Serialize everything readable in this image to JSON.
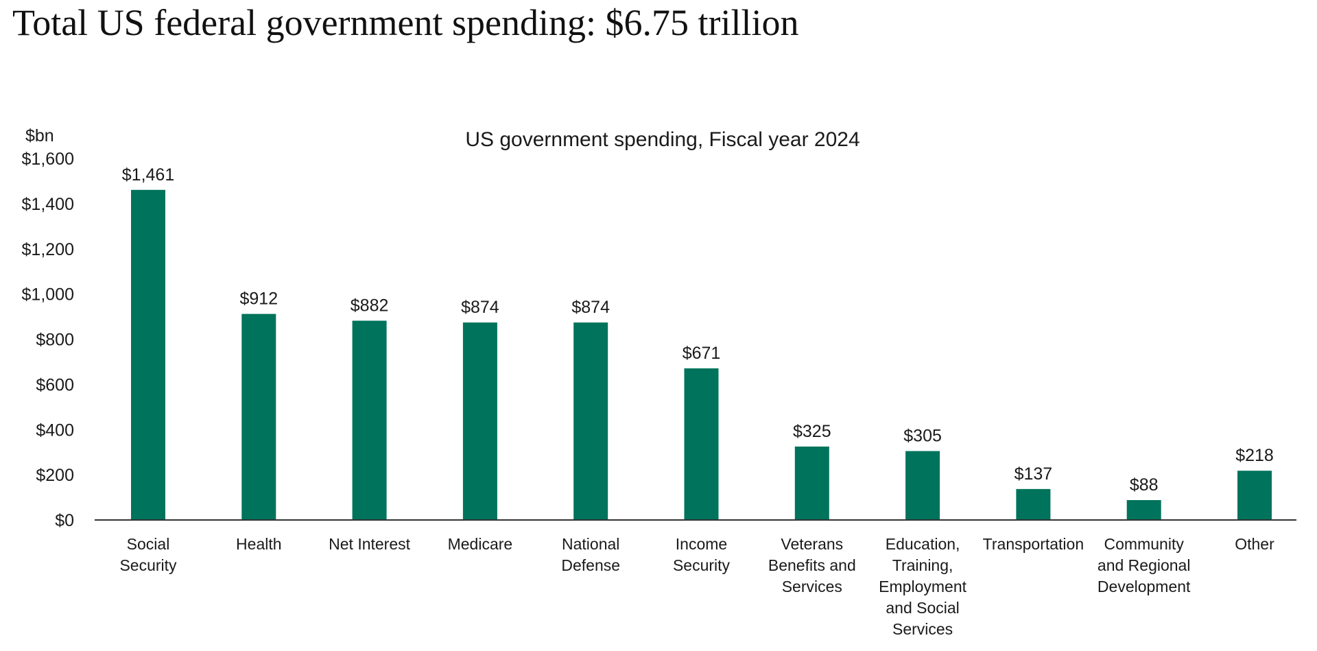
{
  "page": {
    "title": "Total US federal government spending: $6.75 trillion"
  },
  "chart_data": {
    "type": "bar",
    "title": "US government spending, Fiscal year 2024",
    "ylabel": "$bn",
    "xlabel": "",
    "ylim": [
      0,
      1600
    ],
    "yticks": [
      0,
      200,
      400,
      600,
      800,
      1000,
      1200,
      1400,
      1600
    ],
    "ytick_labels": [
      "$0",
      "$200",
      "$400",
      "$600",
      "$800",
      "$1,000",
      "$1,200",
      "$1,400",
      "$1,600"
    ],
    "categories": [
      "Social Security",
      "Health",
      "Net Interest",
      "Medicare",
      "National Defense",
      "Income Security",
      "Veterans Benefits and Services",
      "Education, Training, Employment and Social Services",
      "Transportation",
      "Community and Regional Development",
      "Other"
    ],
    "category_lines": [
      [
        "Social",
        "Security"
      ],
      [
        "Health"
      ],
      [
        "Net Interest"
      ],
      [
        "Medicare"
      ],
      [
        "National",
        "Defense"
      ],
      [
        "Income",
        "Security"
      ],
      [
        "Veterans",
        "Benefits and",
        "Services"
      ],
      [
        "Education,",
        "Training,",
        "Employment",
        "and Social",
        "Services"
      ],
      [
        "Transportation"
      ],
      [
        "Community",
        "and Regional",
        "Development"
      ],
      [
        "Other"
      ]
    ],
    "values": [
      1461,
      912,
      882,
      874,
      874,
      671,
      325,
      305,
      137,
      88,
      218
    ],
    "data_labels": [
      "$1,461",
      "$912",
      "$882",
      "$874",
      "$874",
      "$671",
      "$325",
      "$305",
      "$137",
      "$88",
      "$218"
    ],
    "grid": false,
    "legend": "none",
    "colors": {
      "bar": "#00735c",
      "axis": "#333333"
    }
  }
}
